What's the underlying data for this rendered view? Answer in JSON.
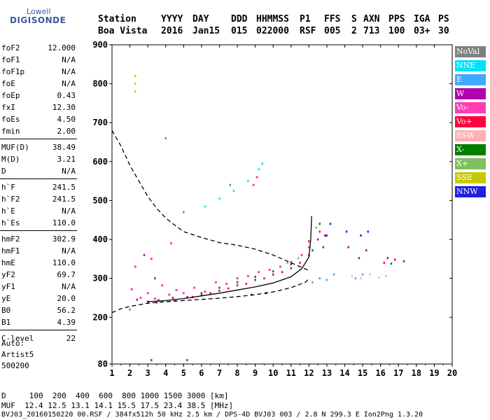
{
  "logo": {
    "line1": "Lowell",
    "line2": "DIGISONDE"
  },
  "header": {
    "labels": [
      "Station",
      "YYYY",
      "DAY",
      "DDD",
      "HHMMSS",
      "P1",
      "FFS",
      "S",
      "AXN",
      "PPS",
      "IGA",
      "PS"
    ],
    "values": [
      "Boa Vista",
      "2016",
      "Jan15",
      "015",
      "022000",
      "RSF",
      "005",
      "2",
      "713",
      "100",
      "03+",
      "30"
    ]
  },
  "params": [
    {
      "group": [
        {
          "name": "foF2",
          "value": "12.000"
        },
        {
          "name": "foF1",
          "value": "N/A"
        },
        {
          "name": "foF1p",
          "value": "N/A"
        },
        {
          "name": "foE",
          "value": "N/A"
        },
        {
          "name": "foEp",
          "value": "0.43"
        },
        {
          "name": "fxI",
          "value": "12.30"
        },
        {
          "name": "foEs",
          "value": "4.50"
        },
        {
          "name": "fmin",
          "value": "2.00"
        }
      ]
    },
    {
      "group": [
        {
          "name": "MUF(D)",
          "value": "38.49"
        },
        {
          "name": "M(D)",
          "value": "3.21"
        },
        {
          "name": "D",
          "value": "N/A"
        }
      ]
    },
    {
      "group": [
        {
          "name": "h`F",
          "value": "241.5"
        },
        {
          "name": "h`F2",
          "value": "241.5"
        },
        {
          "name": "h`E",
          "value": "N/A"
        },
        {
          "name": "h`Es",
          "value": "110.0"
        }
      ]
    },
    {
      "group": [
        {
          "name": "hmF2",
          "value": "302.9"
        },
        {
          "name": "hmF1",
          "value": "N/A"
        },
        {
          "name": "hmE",
          "value": "110.0"
        },
        {
          "name": "yF2",
          "value": "69.7"
        },
        {
          "name": "yF1",
          "value": "N/A"
        },
        {
          "name": "yE",
          "value": "20.0"
        },
        {
          "name": "B0",
          "value": "56.2"
        },
        {
          "name": "B1",
          "value": "4.39"
        }
      ]
    },
    {
      "group": [
        {
          "name": "C-level",
          "value": "22"
        }
      ]
    }
  ],
  "auto": {
    "line1": "Auto:",
    "line2": "Artist5",
    "line3": "500200"
  },
  "legend": [
    {
      "label": "NoVal",
      "bg": "#808080",
      "fg": "#ffffff"
    },
    {
      "label": "NNE",
      "bg": "#00e0ff",
      "fg": "#ffffff"
    },
    {
      "label": "E",
      "bg": "#3fa9ff",
      "fg": "#ffffff"
    },
    {
      "label": "W",
      "bg": "#b000b0",
      "fg": "#ffffff"
    },
    {
      "label": "Vo-",
      "bg": "#ff3cb4",
      "fg": "#ffffff"
    },
    {
      "label": "Vo+",
      "bg": "#ff0040",
      "fg": "#ffffff"
    },
    {
      "label": "SSW",
      "bg": "#ffb0b0",
      "fg": "#ffffff"
    },
    {
      "label": "X-",
      "bg": "#008000",
      "fg": "#ffffff"
    },
    {
      "label": "X+",
      "bg": "#80c060",
      "fg": "#ffffff"
    },
    {
      "label": "SSE",
      "bg": "#c8c800",
      "fg": "#ffffff"
    },
    {
      "label": "NNW",
      "bg": "#2020e0",
      "fg": "#ffffff"
    }
  ],
  "footer": {
    "d_row": "D     100  200  400  600  800 1000 1500 3000 [km]",
    "muf_row": "MUF  12.4 12.5 13.1 14.1 15.5 17.5 23.4 38.5 [MHz]",
    "file_row": "BVJ03_20160150220 00.RSF / 384fx512h 50 kHz 2.5 km / DPS-4D BVJ03 003 / 2.8 N 299.3 E Ion2Png 1.3.20"
  },
  "chart_data": {
    "type": "scatter",
    "title": "",
    "xlabel": "",
    "ylabel": "",
    "xlim": [
      1,
      20
    ],
    "ylim": [
      80,
      900
    ],
    "x_ticks": [
      1,
      2,
      3,
      4,
      5,
      6,
      7,
      8,
      9,
      10,
      11,
      12,
      13,
      14,
      15,
      16,
      17,
      18,
      19,
      20
    ],
    "y_ticks": [
      80,
      200,
      300,
      400,
      500,
      600,
      700,
      800,
      900
    ],
    "grid": false,
    "legend_position": "right",
    "series": [
      {
        "name": "Vo-",
        "color": "#ff3cb4",
        "points": [
          [
            2.1,
            272
          ],
          [
            2.6,
            250
          ],
          [
            3.0,
            262
          ],
          [
            3.4,
            248
          ],
          [
            3.8,
            282
          ],
          [
            4.2,
            258
          ],
          [
            4.6,
            270
          ],
          [
            5.0,
            262
          ],
          [
            5.6,
            276
          ],
          [
            6.2,
            266
          ],
          [
            6.8,
            290
          ],
          [
            7.4,
            286
          ],
          [
            8.0,
            300
          ],
          [
            8.6,
            306
          ],
          [
            9.2,
            316
          ],
          [
            9.8,
            322
          ],
          [
            10.4,
            330
          ],
          [
            11.0,
            342
          ],
          [
            11.6,
            360
          ],
          [
            12.0,
            380
          ],
          [
            2.3,
            330
          ],
          [
            3.2,
            350
          ],
          [
            4.3,
            390
          ],
          [
            8.9,
            540
          ],
          [
            9.1,
            560
          ]
        ]
      },
      {
        "name": "W",
        "color": "#b000b0",
        "points": [
          [
            2.4,
            245
          ],
          [
            3.0,
            240
          ],
          [
            3.6,
            244
          ],
          [
            4.4,
            250
          ],
          [
            5.2,
            252
          ],
          [
            6.0,
            258
          ],
          [
            7.0,
            268
          ],
          [
            8.0,
            282
          ],
          [
            9.0,
            296
          ],
          [
            10.0,
            310
          ],
          [
            11.0,
            326
          ],
          [
            12.0,
            360
          ],
          [
            12.5,
            400
          ],
          [
            12.8,
            380
          ],
          [
            13.0,
            410
          ],
          [
            14.2,
            380
          ],
          [
            14.8,
            352
          ],
          [
            15.2,
            372
          ],
          [
            16.4,
            352
          ],
          [
            17.3,
            344
          ],
          [
            2.8,
            360
          ],
          [
            3.4,
            300
          ]
        ]
      },
      {
        "name": "Vo+",
        "color": "#ff0040",
        "points": [
          [
            3.5,
            238
          ],
          [
            4.5,
            244
          ],
          [
            5.5,
            252
          ],
          [
            6.5,
            262
          ],
          [
            7.5,
            274
          ],
          [
            8.5,
            286
          ],
          [
            9.5,
            300
          ],
          [
            10.5,
            316
          ],
          [
            11.5,
            340
          ],
          [
            12.0,
            395
          ],
          [
            12.6,
            420
          ],
          [
            16.2,
            340
          ],
          [
            16.8,
            348
          ]
        ]
      },
      {
        "name": "X-",
        "color": "#008000",
        "points": [
          [
            6.0,
            262
          ],
          [
            7.0,
            276
          ],
          [
            8.0,
            290
          ],
          [
            9.0,
            304
          ],
          [
            10.0,
            318
          ],
          [
            11.0,
            336
          ],
          [
            12.2,
            372
          ],
          [
            12.6,
            440
          ],
          [
            16.6,
            338
          ],
          [
            3.2,
            90
          ],
          [
            5.2,
            90
          ]
        ]
      },
      {
        "name": "E",
        "color": "#3fa9ff",
        "points": [
          [
            12.2,
            290
          ],
          [
            12.6,
            300
          ],
          [
            13.0,
            296
          ],
          [
            13.4,
            310
          ],
          [
            14.6,
            300
          ],
          [
            15.0,
            310
          ]
        ]
      },
      {
        "name": "NNE",
        "color": "#00e0ff",
        "points": [
          [
            6.2,
            485
          ],
          [
            7.0,
            505
          ],
          [
            7.8,
            525
          ],
          [
            8.6,
            550
          ],
          [
            9.2,
            580
          ],
          [
            9.4,
            595
          ]
        ]
      },
      {
        "name": "SSW",
        "color": "#ffb0b0",
        "points": [
          [
            14.4,
            305
          ],
          [
            14.9,
            300
          ],
          [
            15.4,
            310
          ],
          [
            15.9,
            302
          ],
          [
            16.3,
            306
          ]
        ]
      },
      {
        "name": "X+",
        "color": "#80c060",
        "points": [
          [
            10.8,
            340
          ],
          [
            11.4,
            352
          ],
          [
            12.4,
            430
          ]
        ]
      },
      {
        "name": "SSE",
        "color": "#c8c800",
        "points": [
          [
            2.3,
            780
          ],
          [
            2.3,
            800
          ],
          [
            2.3,
            820
          ]
        ]
      },
      {
        "name": "NNW",
        "color": "#2020e0",
        "points": [
          [
            12.9,
            410
          ],
          [
            13.2,
            440
          ],
          [
            14.1,
            420
          ],
          [
            14.9,
            410
          ],
          [
            15.3,
            420
          ],
          [
            8.8,
            258
          ],
          [
            9.6,
            262
          ]
        ]
      },
      {
        "name": "NoVal",
        "color": "#808080",
        "points": [
          [
            2.0,
            220
          ],
          [
            4.0,
            660
          ],
          [
            5.0,
            470
          ],
          [
            7.6,
            540
          ]
        ]
      }
    ],
    "lines": [
      {
        "kind": "profile",
        "color": "#000000",
        "style": "solid",
        "points": [
          [
            3.0,
            240
          ],
          [
            4.0,
            243
          ],
          [
            5.0,
            248
          ],
          [
            6.0,
            255
          ],
          [
            7.0,
            262
          ],
          [
            8.0,
            270
          ],
          [
            9.0,
            278
          ],
          [
            10.0,
            288
          ],
          [
            11.0,
            304
          ],
          [
            11.6,
            325
          ],
          [
            12.0,
            355
          ],
          [
            12.1,
            400
          ],
          [
            12.15,
            460
          ]
        ]
      },
      {
        "kind": "model",
        "color": "#000000",
        "style": "dashed",
        "points": [
          [
            1.0,
            212
          ],
          [
            1.5,
            222
          ],
          [
            2.0,
            228
          ],
          [
            3.0,
            236
          ],
          [
            4.0,
            240
          ],
          [
            5.0,
            243
          ],
          [
            6.0,
            246
          ],
          [
            7.0,
            249
          ],
          [
            8.0,
            253
          ],
          [
            9.0,
            258
          ],
          [
            10.0,
            265
          ],
          [
            11.0,
            276
          ],
          [
            11.8,
            290
          ],
          [
            12.0,
            300
          ]
        ]
      },
      {
        "kind": "muf",
        "color": "#000000",
        "style": "dashed",
        "points": [
          [
            1.0,
            680
          ],
          [
            1.5,
            640
          ],
          [
            2.0,
            590
          ],
          [
            2.5,
            550
          ],
          [
            3.0,
            510
          ],
          [
            3.5,
            480
          ],
          [
            4.0,
            455
          ],
          [
            4.5,
            437
          ],
          [
            5.0,
            420
          ],
          [
            6.0,
            405
          ],
          [
            7.0,
            392
          ],
          [
            8.0,
            385
          ],
          [
            9.0,
            375
          ],
          [
            10.0,
            360
          ],
          [
            11.0,
            340
          ],
          [
            12.0,
            320
          ]
        ]
      }
    ]
  }
}
